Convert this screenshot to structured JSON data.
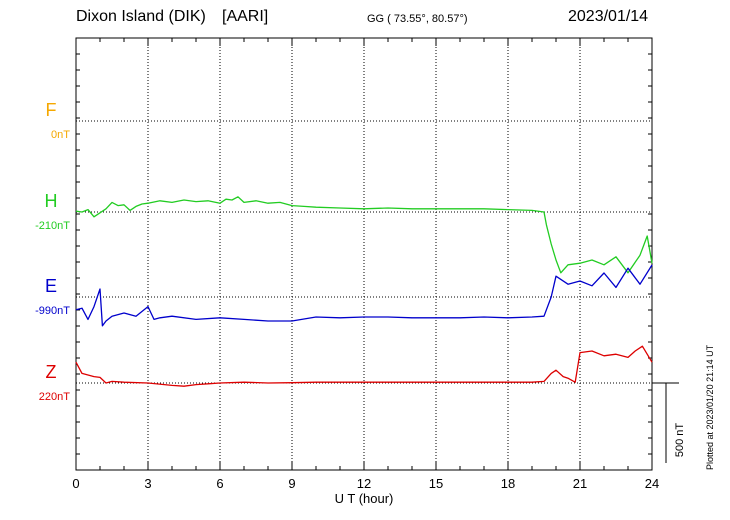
{
  "header": {
    "station": "Dixon Island (DIK)",
    "institute": "[AARI]",
    "coords_text": "GG ( 73.55°,  80.57°)",
    "date": "2023/01/14"
  },
  "plotted_note": "Plotted at 2023/01/20 21:14 UT",
  "chart_data": {
    "type": "line",
    "xlabel": "U T (hour)",
    "xlim": [
      0,
      24
    ],
    "xticks": [
      0,
      3,
      6,
      9,
      12,
      15,
      18,
      21,
      24
    ],
    "scale_bar": {
      "label": "500 nT",
      "value_nT": 500
    },
    "grid": true,
    "channels": [
      {
        "name": "F",
        "baseline_label": "0nT",
        "color": "#f5a800"
      },
      {
        "name": "H",
        "baseline_label": "-210nT",
        "color": "#22cc22"
      },
      {
        "name": "E",
        "baseline_label": "-990nT",
        "color": "#0000cc"
      },
      {
        "name": "Z",
        "baseline_label": "220nT",
        "color": "#dd0000"
      }
    ],
    "series": [
      {
        "name": "H",
        "x": [
          0,
          0.25,
          0.5,
          0.75,
          1,
          1.25,
          1.5,
          1.75,
          2,
          2.25,
          2.5,
          2.75,
          3,
          3.5,
          4,
          4.5,
          5,
          5.5,
          6,
          6.25,
          6.5,
          6.75,
          7,
          7.5,
          8,
          8.5,
          9,
          9.5,
          10,
          11,
          12,
          13,
          14,
          15,
          16,
          17,
          18,
          19,
          19.5,
          19.6,
          19.8,
          20,
          20.2,
          20.5,
          21,
          21.5,
          22,
          22.5,
          23,
          23.5,
          23.8,
          24
        ],
        "values": [
          5,
          0,
          15,
          -30,
          -5,
          20,
          60,
          40,
          45,
          10,
          35,
          50,
          55,
          70,
          60,
          75,
          65,
          70,
          55,
          80,
          75,
          95,
          60,
          70,
          55,
          60,
          40,
          35,
          30,
          25,
          20,
          25,
          20,
          20,
          20,
          20,
          15,
          10,
          0,
          -80,
          -200,
          -300,
          -380,
          -330,
          -320,
          -300,
          -330,
          -280,
          -380,
          -270,
          -150,
          -320
        ]
      },
      {
        "name": "E",
        "x": [
          0,
          0.25,
          0.5,
          0.75,
          1,
          1.1,
          1.25,
          1.5,
          2,
          2.5,
          3,
          3.25,
          3.5,
          4,
          5,
          6,
          7,
          8,
          9,
          10,
          11,
          12,
          13,
          14,
          15,
          16,
          17,
          18,
          19,
          19.5,
          19.8,
          20,
          20.5,
          21,
          21.5,
          22,
          22.5,
          23,
          23.5,
          24
        ],
        "values": [
          -80,
          -70,
          -140,
          -60,
          50,
          -180,
          -150,
          -120,
          -100,
          -120,
          -60,
          -140,
          -130,
          -120,
          -140,
          -130,
          -140,
          -150,
          -150,
          -125,
          -130,
          -125,
          -125,
          -130,
          -130,
          -130,
          -125,
          -130,
          -125,
          -120,
          0,
          130,
          80,
          100,
          70,
          150,
          60,
          180,
          80,
          200
        ]
      },
      {
        "name": "Z",
        "x": [
          0,
          0.25,
          0.5,
          0.75,
          1,
          1.25,
          1.5,
          2,
          3,
          4,
          4.5,
          5,
          5.5,
          6,
          7,
          8,
          9,
          10,
          11,
          12,
          13,
          14,
          15,
          16,
          17,
          18,
          19,
          19.5,
          19.8,
          20,
          20.3,
          20.5,
          20.8,
          21,
          21.5,
          22,
          22.5,
          23,
          23.3,
          23.6,
          24
        ],
        "values": [
          130,
          60,
          50,
          40,
          35,
          0,
          10,
          5,
          0,
          -15,
          -20,
          -10,
          -5,
          0,
          5,
          0,
          2,
          5,
          5,
          5,
          5,
          5,
          5,
          5,
          5,
          5,
          5,
          10,
          60,
          80,
          40,
          30,
          5,
          190,
          200,
          170,
          180,
          160,
          200,
          230,
          130
        ]
      }
    ]
  }
}
